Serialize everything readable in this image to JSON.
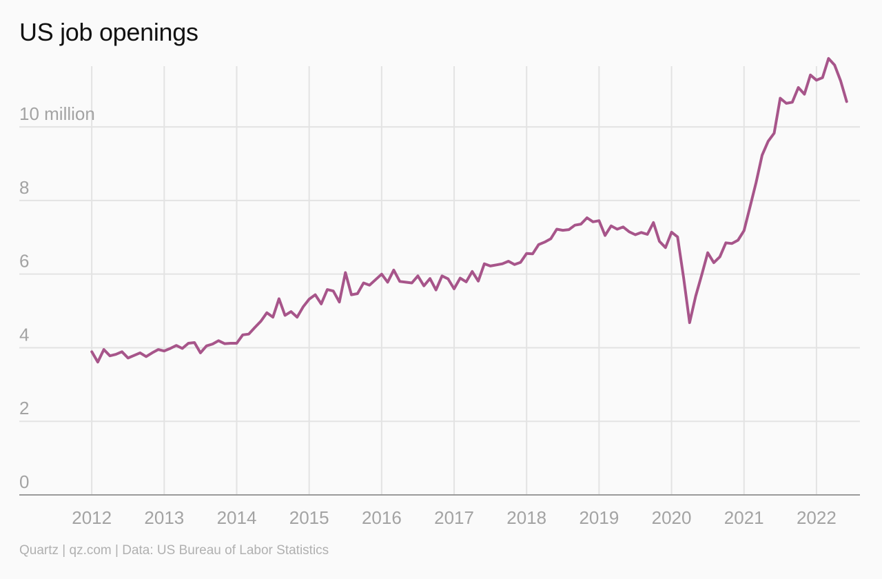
{
  "title": "US job openings",
  "source": "Quartz | qz.com | Data: US Bureau of Labor Statistics",
  "chart_data": {
    "type": "line",
    "title": "US job openings",
    "xlabel": "",
    "ylabel": "",
    "x_unit": "year (fractional, monthly)",
    "x_range": [
      2011.0,
      2022.6
    ],
    "ylim": [
      0,
      11.8
    ],
    "y_ticks": [
      0,
      2,
      4,
      6,
      8,
      10
    ],
    "y_tick_labels": [
      "0",
      "2",
      "4",
      "6",
      "8",
      "10 million"
    ],
    "x_ticks": [
      2012,
      2013,
      2014,
      2015,
      2016,
      2017,
      2018,
      2019,
      2020,
      2021,
      2022
    ],
    "x_tick_labels": [
      "2012",
      "2013",
      "2014",
      "2015",
      "2016",
      "2017",
      "2018",
      "2019",
      "2020",
      "2021",
      "2022"
    ],
    "grid": true,
    "legend": "none",
    "series": [
      {
        "color": "#a7558a",
        "x_start": "2012-01",
        "frequency": "monthly",
        "values": [
          3.89,
          3.61,
          3.95,
          3.78,
          3.82,
          3.89,
          3.72,
          3.79,
          3.86,
          3.76,
          3.86,
          3.95,
          3.91,
          3.98,
          4.06,
          3.98,
          4.12,
          4.14,
          3.86,
          4.05,
          4.1,
          4.19,
          4.11,
          4.12,
          4.12,
          4.35,
          4.37,
          4.55,
          4.72,
          4.95,
          4.83,
          5.33,
          4.88,
          4.98,
          4.83,
          5.11,
          5.32,
          5.44,
          5.19,
          5.58,
          5.54,
          5.24,
          6.04,
          5.44,
          5.47,
          5.76,
          5.7,
          5.85,
          6.0,
          5.78,
          6.11,
          5.8,
          5.78,
          5.76,
          5.95,
          5.68,
          5.88,
          5.57,
          5.95,
          5.87,
          5.6,
          5.89,
          5.79,
          6.07,
          5.81,
          6.28,
          6.22,
          6.25,
          6.28,
          6.35,
          6.26,
          6.32,
          6.56,
          6.55,
          6.8,
          6.87,
          6.96,
          7.22,
          7.19,
          7.21,
          7.33,
          7.36,
          7.53,
          7.42,
          7.45,
          7.05,
          7.31,
          7.22,
          7.28,
          7.15,
          7.07,
          7.13,
          7.08,
          7.4,
          6.89,
          6.72,
          7.14,
          7.01,
          5.9,
          4.68,
          5.4,
          5.98,
          6.58,
          6.31,
          6.47,
          6.85,
          6.83,
          6.92,
          7.18,
          7.83,
          8.49,
          9.23,
          9.61,
          9.83,
          10.78,
          10.64,
          10.67,
          11.07,
          10.89,
          11.41,
          11.27,
          11.34,
          11.86,
          11.68,
          11.25,
          10.69
        ]
      }
    ]
  }
}
